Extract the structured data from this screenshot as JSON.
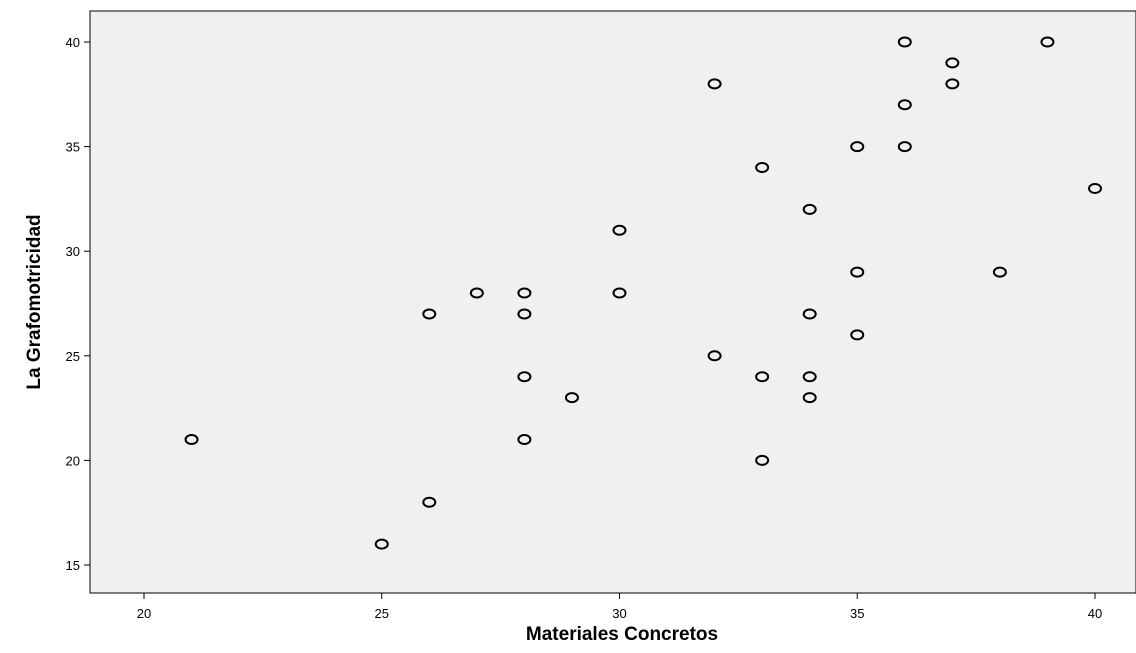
{
  "chart_data": {
    "type": "scatter",
    "xlabel": "Materiales Concretos",
    "ylabel": "La Grafomotricidad",
    "xlim": [
      19,
      41
    ],
    "ylim": [
      13.6,
      41.5
    ],
    "xticks": [
      20,
      25,
      30,
      35,
      40
    ],
    "yticks": [
      15,
      20,
      25,
      30,
      35,
      40
    ],
    "grid": false,
    "plot_background": "#f0f0f0",
    "marker": "open-circle",
    "points": [
      {
        "x": 21,
        "y": 21
      },
      {
        "x": 25,
        "y": 16
      },
      {
        "x": 26,
        "y": 27
      },
      {
        "x": 26,
        "y": 18
      },
      {
        "x": 27,
        "y": 28
      },
      {
        "x": 28,
        "y": 28
      },
      {
        "x": 28,
        "y": 27
      },
      {
        "x": 28,
        "y": 24
      },
      {
        "x": 28,
        "y": 21
      },
      {
        "x": 29,
        "y": 23
      },
      {
        "x": 30,
        "y": 31
      },
      {
        "x": 30,
        "y": 28
      },
      {
        "x": 32,
        "y": 38
      },
      {
        "x": 32,
        "y": 25
      },
      {
        "x": 33,
        "y": 34
      },
      {
        "x": 33,
        "y": 24
      },
      {
        "x": 33,
        "y": 20
      },
      {
        "x": 34,
        "y": 32
      },
      {
        "x": 34,
        "y": 27
      },
      {
        "x": 34,
        "y": 24
      },
      {
        "x": 34,
        "y": 23
      },
      {
        "x": 35,
        "y": 35
      },
      {
        "x": 35,
        "y": 29
      },
      {
        "x": 35,
        "y": 26
      },
      {
        "x": 36,
        "y": 40
      },
      {
        "x": 36,
        "y": 37
      },
      {
        "x": 36,
        "y": 35
      },
      {
        "x": 37,
        "y": 39
      },
      {
        "x": 37,
        "y": 38
      },
      {
        "x": 38,
        "y": 29
      },
      {
        "x": 39,
        "y": 40
      },
      {
        "x": 40,
        "y": 33
      }
    ]
  }
}
